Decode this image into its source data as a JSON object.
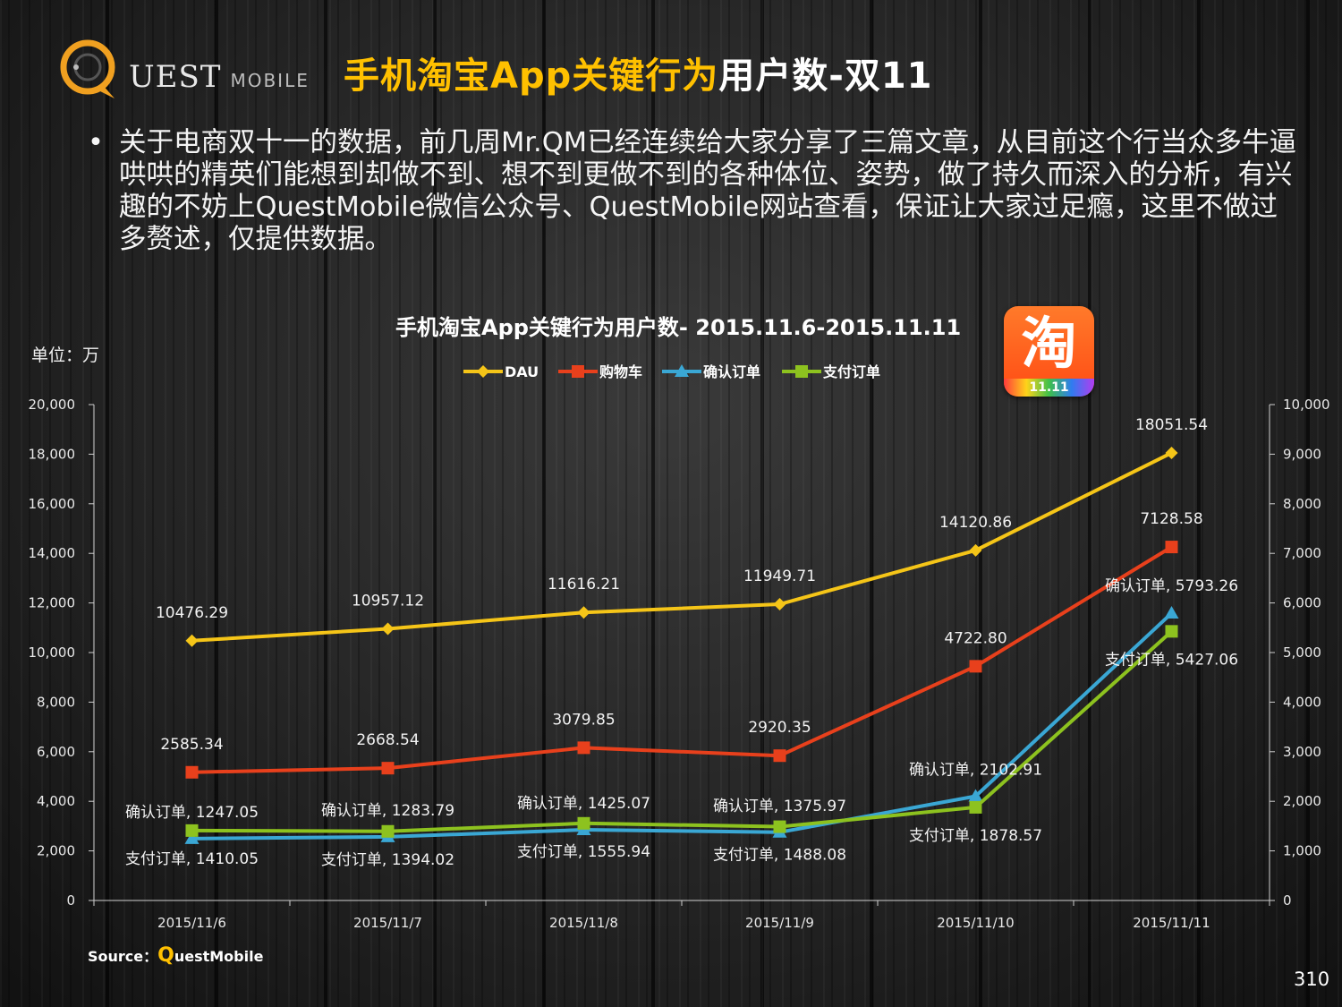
{
  "header": {
    "logo_text": "UEST",
    "logo_sub": "MOBILE",
    "title_part1": "手机淘宝App关键行为",
    "title_part2": "用户数",
    "title_part3": "-双11"
  },
  "bullet": {
    "marker": "•",
    "text": "关于电商双十一的数据，前几周Mr.QM已经连续给大家分享了三篇文章，从目前这个行当众多牛逼哄哄的精英们能想到却做不到、想不到更做不到的各种体位、姿势，做了持久而深入的分析，有兴趣的不妨上QuestMobile微信公众号、QuestMobile网站查看，保证让大家过足瘾，这里不做过多赘述，仅提供数据。"
  },
  "unit_label": "单位：万",
  "badge": {
    "glyph": "淘",
    "date": "11.11"
  },
  "source": {
    "prefix": "Source：",
    "q": "Q",
    "rest": "uestMobile"
  },
  "page_number": "310",
  "chart_data": {
    "type": "line",
    "title": "手机淘宝App关键行为用户数- 2015.11.6-2015.11.11",
    "categories": [
      "2015/11/6",
      "2015/11/7",
      "2015/11/8",
      "2015/11/9",
      "2015/11/10",
      "2015/11/11"
    ],
    "y_left": {
      "min": 0,
      "max": 20000,
      "step": 2000,
      "ticks": [
        "0",
        "2,000",
        "4,000",
        "6,000",
        "8,000",
        "10,000",
        "12,000",
        "14,000",
        "16,000",
        "18,000",
        "20,000"
      ]
    },
    "y_right": {
      "min": 0,
      "max": 10000,
      "step": 1000,
      "ticks": [
        "0",
        "1,000",
        "2,000",
        "3,000",
        "4,000",
        "5,000",
        "6,000",
        "7,000",
        "8,000",
        "9,000",
        "10,000"
      ]
    },
    "legend_position": "top",
    "series": [
      {
        "name": "DAU",
        "color": "#f5c518",
        "marker": "diamond",
        "axis": "left",
        "values": [
          10476.29,
          10957.12,
          11616.21,
          11949.71,
          14120.86,
          18051.54
        ],
        "labels": [
          "10476.29",
          "10957.12",
          "11616.21",
          "11949.71",
          "14120.86",
          "18051.54"
        ]
      },
      {
        "name": "购物车",
        "color": "#e8401c",
        "marker": "square",
        "axis": "right",
        "values": [
          2585.34,
          2668.54,
          3079.85,
          2920.35,
          4722.8,
          7128.58
        ],
        "labels": [
          "2585.34",
          "2668.54",
          "3079.85",
          "2920.35",
          "4722.80",
          "7128.58"
        ]
      },
      {
        "name": "确认订单",
        "color": "#3aa7d4",
        "marker": "triangle",
        "axis": "right",
        "values": [
          1247.05,
          1283.79,
          1425.07,
          1375.97,
          2102.91,
          5793.26
        ],
        "labels": [
          "确认订单, 1247.05",
          "确认订单, 1283.79",
          "确认订单, 1425.07",
          "确认订单, 1375.97",
          "确认订单, 2102.91",
          "确认订单, 5793.26"
        ]
      },
      {
        "name": "支付订单",
        "color": "#8dc21f",
        "marker": "square",
        "axis": "right",
        "values": [
          1410.05,
          1394.02,
          1555.94,
          1488.08,
          1878.57,
          5427.06
        ],
        "labels": [
          "支付订单, 1410.05",
          "支付订单, 1394.02",
          "支付订单, 1555.94",
          "支付订单, 1488.08",
          "支付订单, 1878.57",
          "支付订单, 5427.06"
        ]
      }
    ]
  }
}
